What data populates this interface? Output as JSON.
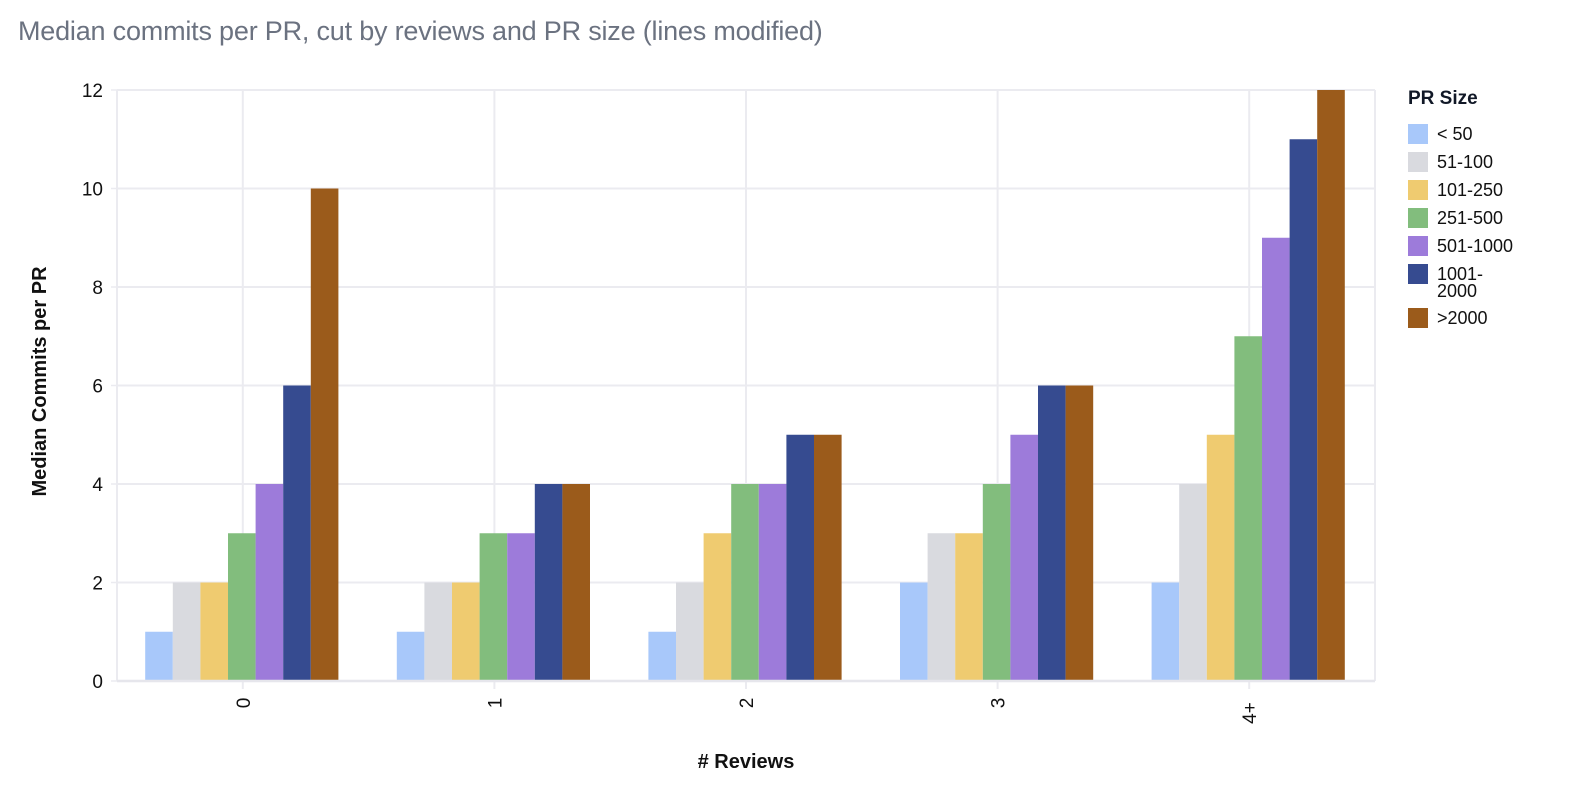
{
  "chart_data": {
    "type": "bar",
    "title": "Median commits per PR, cut by reviews and PR size (lines modified)",
    "xlabel": "# Reviews",
    "ylabel": "Median Commits per PR",
    "categories": [
      "0",
      "1",
      "2",
      "3",
      "4+"
    ],
    "ylim": [
      0,
      12
    ],
    "yticks": [
      0,
      2,
      4,
      6,
      8,
      10,
      12
    ],
    "grid": true,
    "legend_position": "right",
    "legend_title": "PR Size",
    "series": [
      {
        "name": "< 50",
        "color": "#a8c8fa",
        "values": [
          1,
          1,
          1,
          2,
          2
        ]
      },
      {
        "name": "51-100",
        "color": "#d9dadf",
        "values": [
          2,
          2,
          2,
          3,
          4
        ]
      },
      {
        "name": "101-250",
        "color": "#efcb70",
        "values": [
          2,
          2,
          3,
          3,
          5
        ]
      },
      {
        "name": "251-500",
        "color": "#82bd7d",
        "values": [
          3,
          3,
          4,
          4,
          7
        ]
      },
      {
        "name": "501-1000",
        "color": "#9d7bda",
        "values": [
          4,
          3,
          4,
          5,
          9
        ]
      },
      {
        "name": "1001-2000",
        "color": "#364b90",
        "values": [
          6,
          4,
          5,
          6,
          11
        ]
      },
      {
        "name": ">2000",
        "color": "#9b5b1b",
        "values": [
          10,
          4,
          5,
          6,
          12
        ]
      }
    ]
  },
  "legend": {
    "title": "PR Size",
    "items": [
      {
        "label": "< 50",
        "color": "#a8c8fa"
      },
      {
        "label": "51-100",
        "color": "#d9dadf"
      },
      {
        "label": "101-250",
        "color": "#efcb70"
      },
      {
        "label": "251-500",
        "color": "#82bd7d"
      },
      {
        "label": "501-1000",
        "color": "#9d7bda"
      },
      {
        "label": "1001-2000",
        "color": "#364b90"
      },
      {
        "label": ">2000",
        "color": "#9b5b1b"
      }
    ]
  }
}
